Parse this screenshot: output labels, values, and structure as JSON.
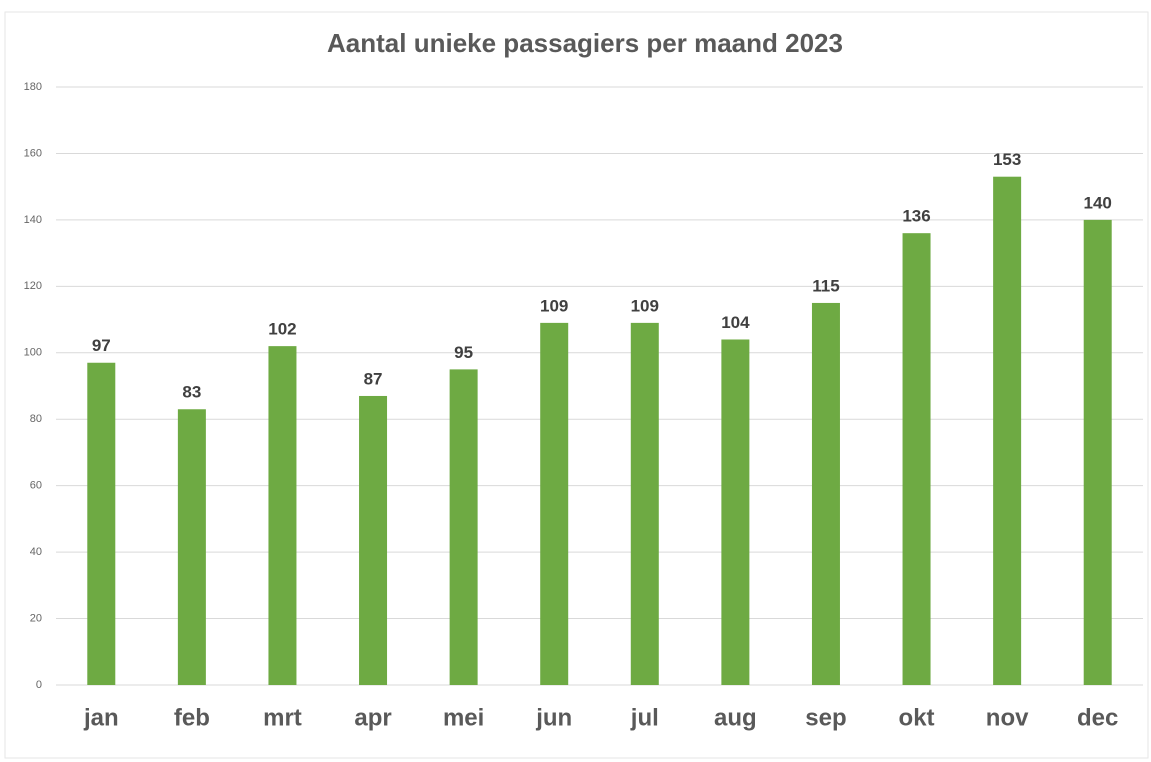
{
  "chart_data": {
    "type": "bar",
    "title": "Aantal unieke passagiers per maand 2023",
    "categories": [
      "jan",
      "feb",
      "mrt",
      "apr",
      "mei",
      "jun",
      "jul",
      "aug",
      "sep",
      "okt",
      "nov",
      "dec"
    ],
    "values": [
      97,
      83,
      102,
      87,
      95,
      109,
      109,
      104,
      115,
      136,
      153,
      140
    ],
    "color": "#6eaa43",
    "ylim": [
      0,
      180
    ],
    "yticks": [
      0,
      20,
      40,
      60,
      80,
      100,
      120,
      140,
      160,
      180
    ],
    "grid": true
  }
}
